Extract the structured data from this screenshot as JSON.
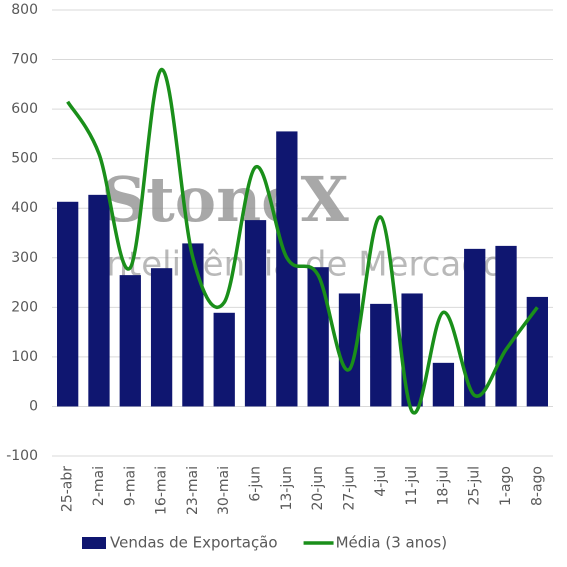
{
  "chart_data": {
    "type": "combo",
    "watermark": {
      "brand": "StoneX",
      "tagline": "Inteligência de Mercado"
    },
    "categories": [
      "25-abr",
      "2-mai",
      "9-mai",
      "16-mai",
      "23-mai",
      "30-mai",
      "6-jun",
      "13-jun",
      "20-jun",
      "27-jun",
      "4-jul",
      "11-jul",
      "18-jul",
      "25-jul",
      "1-ago",
      "8-ago"
    ],
    "series": [
      {
        "name": "Vendas de Exportação",
        "type": "bar",
        "color": "#0f1670",
        "values": [
          413,
          427,
          265,
          279,
          329,
          189,
          376,
          555,
          281,
          228,
          207,
          228,
          88,
          318,
          324,
          221
        ]
      },
      {
        "name": "Média (3 anos)",
        "type": "line",
        "color": "#1a8f1a",
        "values": [
          615,
          510,
          280,
          680,
          300,
          210,
          483,
          300,
          265,
          75,
          382,
          -10,
          190,
          22,
          115,
          200
        ]
      }
    ],
    "ylim": [
      -100,
      800
    ],
    "yticks": [
      -100,
      0,
      100,
      200,
      300,
      400,
      500,
      600,
      700,
      800
    ],
    "grid": true,
    "legend": "bottom"
  }
}
